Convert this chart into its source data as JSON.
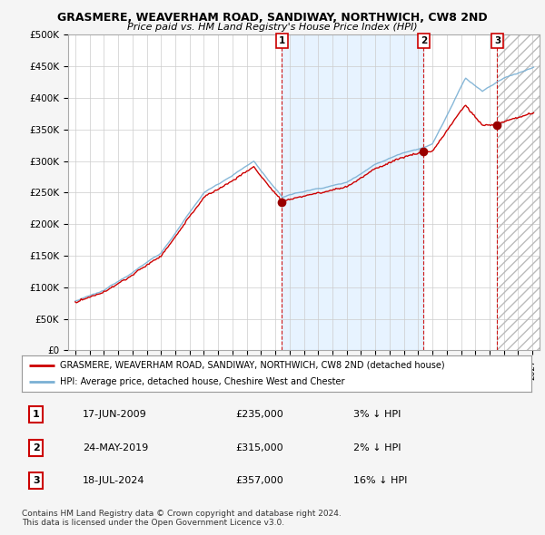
{
  "title": "GRASMERE, WEAVERHAM ROAD, SANDIWAY, NORTHWICH, CW8 2ND",
  "subtitle": "Price paid vs. HM Land Registry's House Price Index (HPI)",
  "ylim": [
    0,
    500000
  ],
  "yticks": [
    0,
    50000,
    100000,
    150000,
    200000,
    250000,
    300000,
    350000,
    400000,
    450000,
    500000
  ],
  "ytick_labels": [
    "£0",
    "£50K",
    "£100K",
    "£150K",
    "£200K",
    "£250K",
    "£300K",
    "£350K",
    "£400K",
    "£450K",
    "£500K"
  ],
  "xlim_start": 1994.5,
  "xlim_end": 2027.5,
  "xticks": [
    1995,
    1996,
    1997,
    1998,
    1999,
    2000,
    2001,
    2002,
    2003,
    2004,
    2005,
    2006,
    2007,
    2008,
    2009,
    2010,
    2011,
    2012,
    2013,
    2014,
    2015,
    2016,
    2017,
    2018,
    2019,
    2020,
    2021,
    2022,
    2023,
    2024,
    2025,
    2026,
    2027
  ],
  "sale_dates": [
    2009.46,
    2019.39,
    2024.54
  ],
  "sale_prices": [
    235000,
    315000,
    357000
  ],
  "sale_labels": [
    "1",
    "2",
    "3"
  ],
  "sale_date_strs": [
    "17-JUN-2009",
    "24-MAY-2019",
    "18-JUL-2024"
  ],
  "sale_price_strs": [
    "£235,000",
    "£315,000",
    "£357,000"
  ],
  "sale_pct_strs": [
    "3% ↓ HPI",
    "2% ↓ HPI",
    "16% ↓ HPI"
  ],
  "hpi_line_color": "#7ab0d4",
  "price_line_color": "#cc0000",
  "sale_marker_color": "#990000",
  "vline_color": "#cc0000",
  "shaded_fill_color": "#ddeeff",
  "legend_line1": "GRASMERE, WEAVERHAM ROAD, SANDIWAY, NORTHWICH, CW8 2ND (detached house)",
  "legend_line2": "HPI: Average price, detached house, Cheshire West and Chester",
  "footer1": "Contains HM Land Registry data © Crown copyright and database right 2024.",
  "footer2": "This data is licensed under the Open Government Licence v3.0."
}
